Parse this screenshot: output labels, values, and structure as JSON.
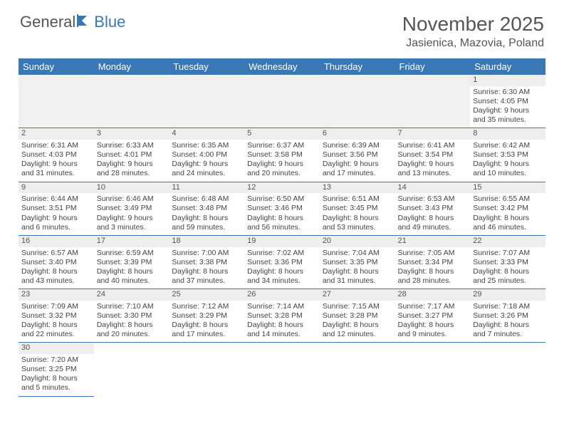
{
  "logo": {
    "part1": "General",
    "part2": "Blue"
  },
  "title": "November 2025",
  "location": "Jasienica, Mazovia, Poland",
  "colors": {
    "header_bg": "#3a78b5",
    "header_text": "#ffffff",
    "daynum_bg": "#eeeeee",
    "border": "#3a78b5",
    "body_text": "#444444",
    "title_text": "#555555"
  },
  "weekdays": [
    "Sunday",
    "Monday",
    "Tuesday",
    "Wednesday",
    "Thursday",
    "Friday",
    "Saturday"
  ],
  "first_weekday_index": 6,
  "days": [
    {
      "n": 1,
      "sunrise": "6:30 AM",
      "sunset": "4:05 PM",
      "daylight": "9 hours and 35 minutes."
    },
    {
      "n": 2,
      "sunrise": "6:31 AM",
      "sunset": "4:03 PM",
      "daylight": "9 hours and 31 minutes."
    },
    {
      "n": 3,
      "sunrise": "6:33 AM",
      "sunset": "4:01 PM",
      "daylight": "9 hours and 28 minutes."
    },
    {
      "n": 4,
      "sunrise": "6:35 AM",
      "sunset": "4:00 PM",
      "daylight": "9 hours and 24 minutes."
    },
    {
      "n": 5,
      "sunrise": "6:37 AM",
      "sunset": "3:58 PM",
      "daylight": "9 hours and 20 minutes."
    },
    {
      "n": 6,
      "sunrise": "6:39 AM",
      "sunset": "3:56 PM",
      "daylight": "9 hours and 17 minutes."
    },
    {
      "n": 7,
      "sunrise": "6:41 AM",
      "sunset": "3:54 PM",
      "daylight": "9 hours and 13 minutes."
    },
    {
      "n": 8,
      "sunrise": "6:42 AM",
      "sunset": "3:53 PM",
      "daylight": "9 hours and 10 minutes."
    },
    {
      "n": 9,
      "sunrise": "6:44 AM",
      "sunset": "3:51 PM",
      "daylight": "9 hours and 6 minutes."
    },
    {
      "n": 10,
      "sunrise": "6:46 AM",
      "sunset": "3:49 PM",
      "daylight": "9 hours and 3 minutes."
    },
    {
      "n": 11,
      "sunrise": "6:48 AM",
      "sunset": "3:48 PM",
      "daylight": "8 hours and 59 minutes."
    },
    {
      "n": 12,
      "sunrise": "6:50 AM",
      "sunset": "3:46 PM",
      "daylight": "8 hours and 56 minutes."
    },
    {
      "n": 13,
      "sunrise": "6:51 AM",
      "sunset": "3:45 PM",
      "daylight": "8 hours and 53 minutes."
    },
    {
      "n": 14,
      "sunrise": "6:53 AM",
      "sunset": "3:43 PM",
      "daylight": "8 hours and 49 minutes."
    },
    {
      "n": 15,
      "sunrise": "6:55 AM",
      "sunset": "3:42 PM",
      "daylight": "8 hours and 46 minutes."
    },
    {
      "n": 16,
      "sunrise": "6:57 AM",
      "sunset": "3:40 PM",
      "daylight": "8 hours and 43 minutes."
    },
    {
      "n": 17,
      "sunrise": "6:59 AM",
      "sunset": "3:39 PM",
      "daylight": "8 hours and 40 minutes."
    },
    {
      "n": 18,
      "sunrise": "7:00 AM",
      "sunset": "3:38 PM",
      "daylight": "8 hours and 37 minutes."
    },
    {
      "n": 19,
      "sunrise": "7:02 AM",
      "sunset": "3:36 PM",
      "daylight": "8 hours and 34 minutes."
    },
    {
      "n": 20,
      "sunrise": "7:04 AM",
      "sunset": "3:35 PM",
      "daylight": "8 hours and 31 minutes."
    },
    {
      "n": 21,
      "sunrise": "7:05 AM",
      "sunset": "3:34 PM",
      "daylight": "8 hours and 28 minutes."
    },
    {
      "n": 22,
      "sunrise": "7:07 AM",
      "sunset": "3:33 PM",
      "daylight": "8 hours and 25 minutes."
    },
    {
      "n": 23,
      "sunrise": "7:09 AM",
      "sunset": "3:32 PM",
      "daylight": "8 hours and 22 minutes."
    },
    {
      "n": 24,
      "sunrise": "7:10 AM",
      "sunset": "3:30 PM",
      "daylight": "8 hours and 20 minutes."
    },
    {
      "n": 25,
      "sunrise": "7:12 AM",
      "sunset": "3:29 PM",
      "daylight": "8 hours and 17 minutes."
    },
    {
      "n": 26,
      "sunrise": "7:14 AM",
      "sunset": "3:28 PM",
      "daylight": "8 hours and 14 minutes."
    },
    {
      "n": 27,
      "sunrise": "7:15 AM",
      "sunset": "3:28 PM",
      "daylight": "8 hours and 12 minutes."
    },
    {
      "n": 28,
      "sunrise": "7:17 AM",
      "sunset": "3:27 PM",
      "daylight": "8 hours and 9 minutes."
    },
    {
      "n": 29,
      "sunrise": "7:18 AM",
      "sunset": "3:26 PM",
      "daylight": "8 hours and 7 minutes."
    },
    {
      "n": 30,
      "sunrise": "7:20 AM",
      "sunset": "3:25 PM",
      "daylight": "8 hours and 5 minutes."
    }
  ],
  "labels": {
    "sunrise": "Sunrise:",
    "sunset": "Sunset:",
    "daylight": "Daylight:"
  }
}
